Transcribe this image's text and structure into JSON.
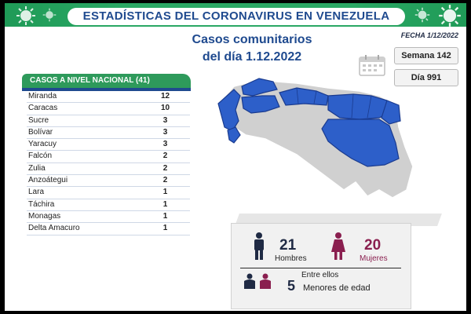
{
  "header": {
    "title": "ESTADÍSTICAS DEL CORONAVIRUS EN VENEZUELA"
  },
  "date_label": "FECHA 1/12/2022",
  "subtitle": {
    "line1": "Casos comunitarios",
    "line2": "del día 1.12.2022"
  },
  "badges": {
    "week": "Semana 142",
    "day": "Día 991"
  },
  "cases_table": {
    "header": "CASOS A NIVEL NACIONAL (41)",
    "rows": [
      {
        "state": "Miranda",
        "count": "12"
      },
      {
        "state": "Caracas",
        "count": "10"
      },
      {
        "state": "Sucre",
        "count": "3"
      },
      {
        "state": "Bolívar",
        "count": "3"
      },
      {
        "state": "Yaracuy",
        "count": "3"
      },
      {
        "state": "Falcón",
        "count": "2"
      },
      {
        "state": "Zulia",
        "count": "2"
      },
      {
        "state": "Anzoátegui",
        "count": "2"
      },
      {
        "state": "Lara",
        "count": "1"
      },
      {
        "state": "Táchira",
        "count": "1"
      },
      {
        "state": "Monagas",
        "count": "1"
      },
      {
        "state": "Delta Amacuro",
        "count": "1"
      }
    ]
  },
  "stats": {
    "men": {
      "count": "21",
      "label": "Hombres"
    },
    "women": {
      "count": "20",
      "label": "Mujeres"
    },
    "minors": {
      "intro": "Entre ellos",
      "count": "5",
      "label": "Menores de edad"
    }
  },
  "colors": {
    "banner_green": "#2aa864",
    "title_blue": "#1f4a8f",
    "map_highlight": "#2d5fc9",
    "map_base": "#d0d0d0",
    "women_accent": "#8a1f4f"
  }
}
